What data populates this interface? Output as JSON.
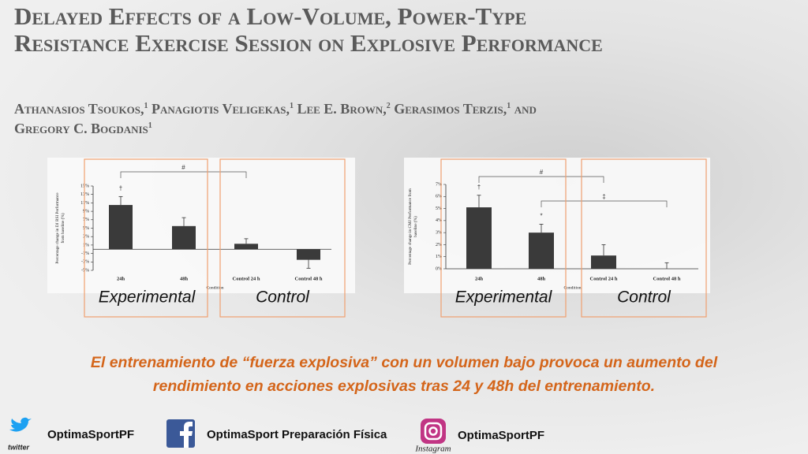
{
  "title": "Delayed Effects of a Low-Volume, Power-Type Resistance Exercise Session on Explosive Performance",
  "authors": [
    {
      "name": "Athanasios Tsoukos,",
      "affiliation": "1"
    },
    {
      "name": "Panagiotis Veligekas,",
      "affiliation": "1"
    },
    {
      "name": "Lee E. Brown,",
      "affiliation": "2"
    },
    {
      "name": "Gerasimos Terzis,",
      "affiliation": "1"
    },
    {
      "name": "Gregory C. Bogdanis",
      "affiliation": "1"
    }
  ],
  "authors_conjunction": "and",
  "chart_data": [
    {
      "type": "bar",
      "y_label": [
        "Percentage change in DJ RSI Performance",
        "from baseline (%)"
      ],
      "x_label": "Condition",
      "categories": [
        "24h",
        "48h",
        "Control 24 h",
        "Control 48 h"
      ],
      "values": [
        10.5,
        5.5,
        1.3,
        -2.5
      ],
      "errors": [
        2,
        2,
        1.2,
        2
      ],
      "color": "#3a3a3a",
      "ylim": [
        -5,
        15
      ],
      "yticks": [
        {
          "value": -5,
          "label": "-5%"
        },
        {
          "value": -3,
          "label": "-3%"
        },
        {
          "value": -1,
          "label": "-1%"
        },
        {
          "value": 1,
          "label": "1%"
        },
        {
          "value": 3,
          "label": "3%"
        },
        {
          "value": 5,
          "label": "5%"
        },
        {
          "value": 7,
          "label": "7%"
        },
        {
          "value": 9,
          "label": "9%"
        },
        {
          "value": 11,
          "label": "11%"
        },
        {
          "value": 13,
          "label": "13%"
        },
        {
          "value": 15,
          "label": "15%"
        }
      ],
      "annotations": [
        "†",
        "#"
      ],
      "groups": [
        "Experimental",
        "Control"
      ]
    },
    {
      "type": "bar",
      "y_label": [
        "Percentage change in CMJ Performance from",
        "baseline (%)"
      ],
      "x_label": "Condition",
      "categories": [
        "24h",
        "48h",
        "Control 24 h",
        "Control 48 h"
      ],
      "values": [
        5.1,
        3.0,
        1.1,
        0.0
      ],
      "errors": [
        1.0,
        0.7,
        0.9,
        0.5
      ],
      "color": "#3a3a3a",
      "ylim": [
        0,
        7
      ],
      "yticks": [
        {
          "value": 0,
          "label": "0%"
        },
        {
          "value": 1,
          "label": "1%"
        },
        {
          "value": 2,
          "label": "2%"
        },
        {
          "value": 3,
          "label": "3%"
        },
        {
          "value": 4,
          "label": "4%"
        },
        {
          "value": 5,
          "label": "5%"
        },
        {
          "value": 6,
          "label": "6%"
        },
        {
          "value": 7,
          "label": "7%"
        }
      ],
      "annotations": [
        "†",
        "*",
        "#",
        "‡"
      ],
      "groups": [
        "Experimental",
        "Control"
      ]
    }
  ],
  "caption": [
    "El entrenamiento de “fuerza explosiva” con un volumen bajo provoca un aumento del",
    "rendimiento en acciones explosivas tras 24 y 48h del entrenamiento."
  ],
  "footer": {
    "twitter": "OptimaSportPF",
    "twitter_label": "twitter",
    "facebook": "OptimaSport Preparación Física",
    "instagram": "OptimaSportPF",
    "instagram_label": "Instagram"
  }
}
